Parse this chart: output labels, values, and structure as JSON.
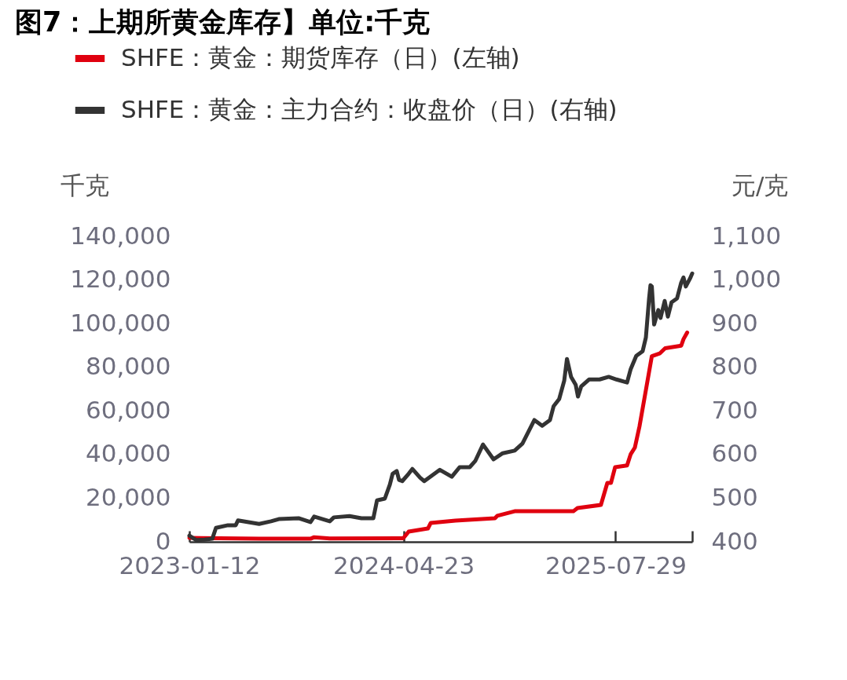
{
  "chart_data": {
    "type": "line",
    "title": "图7：上期所黄金库存】单位:千克",
    "ylabel": "千克",
    "y2label": "元/克",
    "legend": "top",
    "xlim": [
      "2023-01-12",
      "2026-01-12"
    ],
    "xticks": [
      "2023-01-12",
      "2024-04-23",
      "2025-07-29",
      {
        "value": "2026-01-12",
        "label": null
      }
    ],
    "ylim": [
      0,
      140000
    ],
    "yticks": [
      0,
      {
        "value": 20000,
        "label": "20,000"
      },
      {
        "value": 40000,
        "label": "40,000"
      },
      {
        "value": 60000,
        "label": "60,000"
      },
      {
        "value": 80000,
        "label": "80,000"
      },
      {
        "value": 100000,
        "label": "100,000"
      },
      {
        "value": 120000,
        "label": "120,000"
      },
      {
        "value": 140000,
        "label": "140,000"
      }
    ],
    "y2lim": [
      400,
      1100
    ],
    "y2ticks": [
      400,
      500,
      600,
      700,
      800,
      900,
      {
        "value": 1000,
        "label": "1,000"
      },
      {
        "value": 1100,
        "label": "1,100"
      }
    ],
    "series": [
      {
        "name": "SHFE：黄金：期货库存（日）(左轴)",
        "color": "#e0000f",
        "x": [
          "2023-01-12",
          "2023-06-13",
          "2023-10-03",
          "2023-10-11",
          "2023-11-14",
          "2024-04-20",
          "2024-04-23",
          "2024-05-04",
          "2024-06-15",
          "2024-06-21",
          "2024-08-14",
          "2024-11-08",
          "2024-11-13",
          "2024-12-21",
          "2025-04-28",
          "2025-05-07",
          "2025-06-27",
          "2025-07-11",
          "2025-07-19",
          "2025-07-28",
          "2025-08-23",
          "2025-08-31",
          "2025-09-09",
          "2025-09-19",
          "2025-10-03",
          "2025-10-16",
          "2025-11-02",
          "2025-11-14",
          "2025-12-19",
          "2025-12-24",
          "2026-01-01"
        ],
        "values": [
          1800,
          1400,
          1400,
          2100,
          1500,
          1600,
          1800,
          4700,
          6100,
          8600,
          9700,
          10800,
          11900,
          14000,
          14000,
          15500,
          16900,
          27000,
          27000,
          34200,
          35000,
          40200,
          43200,
          52800,
          69500,
          85100,
          86300,
          88700,
          89900,
          92900,
          95900
        ]
      },
      {
        "name": "SHFE：黄金：主力合约：收盘价（日）(右轴)",
        "color": "#333333",
        "axis": "y2",
        "x": [
          "2023-01-12",
          "2023-01-27",
          "2023-02-14",
          "2023-03-03",
          "2023-03-11",
          "2023-04-06",
          "2023-04-23",
          "2023-04-28",
          "2023-06-13",
          "2023-07-09",
          "2023-07-26",
          "2023-09-07",
          "2023-10-03",
          "2023-10-11",
          "2023-11-14",
          "2023-11-23",
          "2023-12-27",
          "2024-01-22",
          "2024-02-17",
          "2024-02-25",
          "2024-03-13",
          "2024-03-24",
          "2024-03-30",
          "2024-04-08",
          "2024-04-13",
          "2024-04-20",
          "2024-05-04",
          "2024-05-12",
          "2024-05-29",
          "2024-06-07",
          "2024-07-11",
          "2024-08-06",
          "2024-08-23",
          "2024-09-14",
          "2024-09-26",
          "2024-10-13",
          "2024-11-05",
          "2024-11-25",
          "2024-12-21",
          "2025-01-07",
          "2025-02-02",
          "2025-02-19",
          "2025-03-08",
          "2025-03-16",
          "2025-03-28",
          "2025-04-08",
          "2025-04-14",
          "2025-04-23",
          "2025-05-03",
          "2025-05-08",
          "2025-05-15",
          "2025-06-01",
          "2025-06-15",
          "2025-06-24",
          "2025-07-14",
          "2025-07-31",
          "2025-08-23",
          "2025-08-31",
          "2025-09-12",
          "2025-09-26",
          "2025-10-03",
          "2025-10-10",
          "2025-10-13",
          "2025-10-16",
          "2025-10-21",
          "2025-10-30",
          "2025-11-04",
          "2025-11-13",
          "2025-11-20",
          "2025-11-28",
          "2025-12-10",
          "2025-12-19",
          "2025-12-24",
          "2025-12-29",
          "2026-01-07",
          "2026-01-12"
        ],
        "values": [
          414,
          404,
          405,
          407,
          432,
          438,
          438,
          449,
          441,
          447,
          452,
          454,
          445,
          458,
          447,
          456,
          459,
          454,
          454,
          495,
          499,
          531,
          556,
          562,
          542,
          539,
          556,
          567,
          547,
          539,
          565,
          549,
          571,
          571,
          585,
          623,
          589,
          603,
          609,
          625,
          679,
          666,
          679,
          711,
          727,
          769,
          819,
          778,
          760,
          733,
          756,
          772,
          772,
          772,
          778,
          772,
          765,
          796,
          826,
          837,
          868,
          958,
          988,
          985,
          898,
          931,
          913,
          952,
          916,
          949,
          958,
          994,
          1006,
          985,
          1003,
          1015
        ]
      }
    ]
  }
}
